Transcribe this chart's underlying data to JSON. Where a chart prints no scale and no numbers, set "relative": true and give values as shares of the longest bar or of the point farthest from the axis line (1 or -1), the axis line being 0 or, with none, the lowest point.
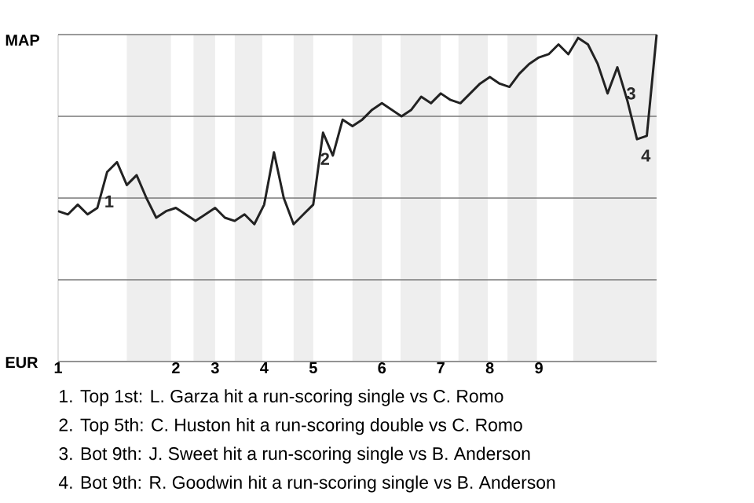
{
  "chart_data": {
    "type": "line",
    "relative": true,
    "categories": [
      "1",
      null,
      null,
      null,
      null,
      null,
      null,
      null,
      null,
      null,
      null,
      null,
      "2",
      null,
      null,
      null,
      "3",
      null,
      null,
      null,
      null,
      "4",
      null,
      null,
      null,
      null,
      "5",
      null,
      null,
      null,
      null,
      null,
      null,
      "6",
      null,
      null,
      null,
      null,
      null,
      "7",
      null,
      null,
      null,
      null,
      "8",
      null,
      null,
      null,
      null,
      "9",
      null,
      null,
      null,
      null,
      null,
      null,
      null,
      null,
      null,
      null,
      null,
      null
    ],
    "series": [
      {
        "color": "#222222",
        "values": [
          0.46,
          0.45,
          0.48,
          0.45,
          0.47,
          0.58,
          0.61,
          0.54,
          0.57,
          0.5,
          0.44,
          0.46,
          0.47,
          0.45,
          0.43,
          0.45,
          0.47,
          0.44,
          0.43,
          0.45,
          0.42,
          0.48,
          0.64,
          0.5,
          0.42,
          0.45,
          0.48,
          0.7,
          0.63,
          0.74,
          0.72,
          0.74,
          0.77,
          0.79,
          0.77,
          0.75,
          0.77,
          0.81,
          0.79,
          0.82,
          0.8,
          0.79,
          0.82,
          0.85,
          0.87,
          0.85,
          0.84,
          0.88,
          0.91,
          0.93,
          0.94,
          0.97,
          0.94,
          0.99,
          0.97,
          0.91,
          0.82,
          0.9,
          0.8,
          0.68,
          0.69,
          1
        ]
      }
    ],
    "grid": "y",
    "annotations": [
      "1",
      "2",
      "3",
      "4",
      "MAP",
      "EUR",
      "1. Top 1st: L. Garza hit a run-scoring single vs C. Romo",
      "2. Top 5th: C. Huston hit a run-scoring double vs C. Romo",
      "3. Bot 9th: J. Sweet hit a run-scoring single vs B. Anderson",
      "4. Bot 9th: R. Goodwin hit a run-scoring single vs B. Anderson"
    ]
  }
}
